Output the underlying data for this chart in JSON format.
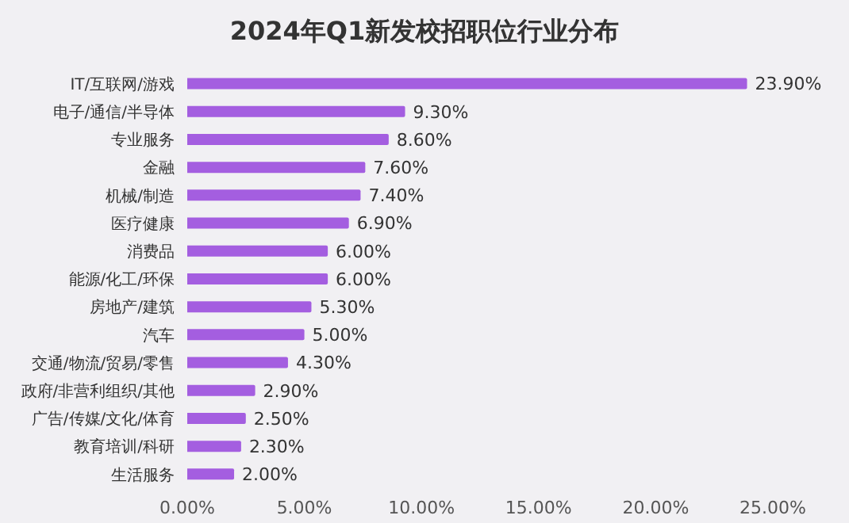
{
  "chart_data": {
    "type": "bar",
    "orientation": "horizontal",
    "title": "2024年Q1新发校招职位行业分布",
    "categories": [
      "IT/互联网/游戏",
      "电子/通信/半导体",
      "专业服务",
      "金融",
      "机械/制造",
      "医疗健康",
      "消费品",
      "能源/化工/环保",
      "房地产/建筑",
      "汽车",
      "交通/物流/贸易/零售",
      "政府/非营利组织/其他",
      "广告/传媒/文化/体育",
      "教育培训/科研",
      "生活服务"
    ],
    "values": [
      23.9,
      9.3,
      8.6,
      7.6,
      7.4,
      6.9,
      6.0,
      6.0,
      5.3,
      5.0,
      4.3,
      2.9,
      2.5,
      2.3,
      2.0
    ],
    "value_labels": [
      "23.90%",
      "9.30%",
      "8.60%",
      "7.60%",
      "7.40%",
      "6.90%",
      "6.00%",
      "6.00%",
      "5.30%",
      "5.00%",
      "4.30%",
      "2.90%",
      "2.50%",
      "2.30%",
      "2.00%"
    ],
    "color": "#a45ee0",
    "xlim": [
      0,
      25
    ],
    "xticks": [
      {
        "value": 0,
        "label": "0.00%"
      },
      {
        "value": 5,
        "label": "5.00%"
      },
      {
        "value": 10,
        "label": "10.00%"
      },
      {
        "value": 15,
        "label": "15.00%"
      },
      {
        "value": 20,
        "label": "20.00%"
      },
      {
        "value": 25,
        "label": "25.00%"
      }
    ],
    "grid": false
  }
}
